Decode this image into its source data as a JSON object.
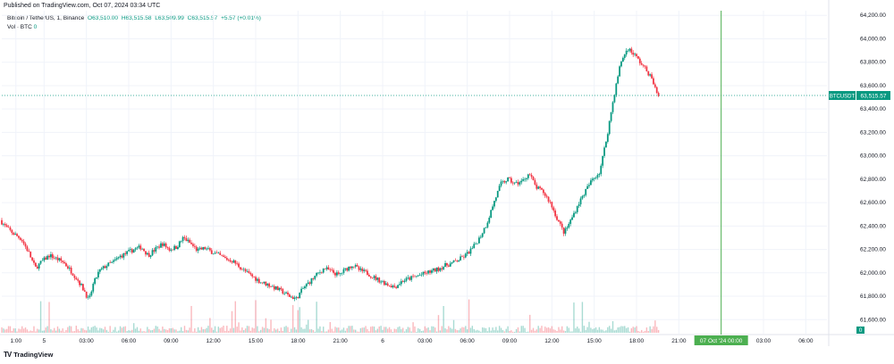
{
  "published": "Published on TradingView.com, Oct 07, 2024 03:34 UTC",
  "legend": {
    "symbol": "Bitcoin / TetherUS, 1, Binance",
    "open": "O63,510.00",
    "high": "H63,515.58",
    "low": "L63,509.99",
    "close": "C63,515.57",
    "change": "+5.57 (+0.01%)",
    "vol_label": "Vol · BTC",
    "vol_value": "0"
  },
  "footer": {
    "brand": "TradingView"
  },
  "colors": {
    "up": "#089981",
    "down": "#f23645",
    "marker": "#4caf50",
    "grid": "#f0f3fa"
  },
  "chart_data": {
    "type": "candlestick",
    "series": [
      {
        "name": "BTCUSDT",
        "price_label": "63,515.57"
      }
    ],
    "y_ticks": [
      61600,
      61800,
      62000,
      62200,
      62400,
      62600,
      62800,
      63000,
      63200,
      63400,
      63600,
      63800,
      64000,
      64200
    ],
    "y_tick_labels": [
      "61,600.00",
      "61,800.00",
      "62,000.00",
      "62,200.00",
      "62,400.00",
      "62,600.00",
      "62,800.00",
      "63,000.00",
      "63,200.00",
      "63,400.00",
      "63,600.00",
      "63,800.00",
      "64,000.00",
      "64,200.00"
    ],
    "ylim": [
      61480,
      64240
    ],
    "x_ticks": [
      "1:00",
      "5",
      "03:00",
      "06:00",
      "09:00",
      "12:00",
      "15:00",
      "18:00",
      "21:00",
      "6",
      "03:00",
      "06:00",
      "09:00",
      "12:00",
      "15:00",
      "18:00",
      "21:00",
      "03:00",
      "06:00"
    ],
    "x_tick_hours": [
      1,
      3,
      6,
      9,
      12,
      15,
      18,
      21,
      24,
      27,
      30,
      33,
      36,
      39,
      42,
      45,
      48,
      54,
      57
    ],
    "x_range_hours": [
      0,
      58.5
    ],
    "marker": {
      "label": "07 Oct '24   00:00",
      "hour": 51
    },
    "last_price": 63515.57,
    "vol_axis_label": "0",
    "price_path": [
      [
        0,
        62450
      ],
      [
        0.5,
        62380
      ],
      [
        1,
        62330
      ],
      [
        1.5,
        62290
      ],
      [
        2,
        62180
      ],
      [
        2.5,
        62040
      ],
      [
        3,
        62100
      ],
      [
        3.5,
        62150
      ],
      [
        4,
        62120
      ],
      [
        4.5,
        62090
      ],
      [
        5,
        62020
      ],
      [
        5.5,
        61940
      ],
      [
        6,
        61840
      ],
      [
        6.3,
        61760
      ],
      [
        6.6,
        61900
      ],
      [
        7,
        62010
      ],
      [
        7.5,
        62060
      ],
      [
        8,
        62090
      ],
      [
        8.5,
        62140
      ],
      [
        9,
        62170
      ],
      [
        9.5,
        62200
      ],
      [
        10,
        62220
      ],
      [
        10.5,
        62150
      ],
      [
        11,
        62200
      ],
      [
        11.5,
        62250
      ],
      [
        12,
        62200
      ],
      [
        12.5,
        62220
      ],
      [
        13,
        62300
      ],
      [
        13.5,
        62250
      ],
      [
        14,
        62190
      ],
      [
        14.5,
        62210
      ],
      [
        15,
        62180
      ],
      [
        15.5,
        62150
      ],
      [
        16,
        62120
      ],
      [
        16.5,
        62100
      ],
      [
        17,
        62050
      ],
      [
        17.5,
        62000
      ],
      [
        18,
        61960
      ],
      [
        18.5,
        61920
      ],
      [
        19,
        61900
      ],
      [
        19.5,
        61870
      ],
      [
        20,
        61840
      ],
      [
        20.5,
        61800
      ],
      [
        21,
        61780
      ],
      [
        21.5,
        61870
      ],
      [
        22,
        61930
      ],
      [
        22.5,
        61990
      ],
      [
        23,
        62040
      ],
      [
        23.5,
        62010
      ],
      [
        24,
        61980
      ],
      [
        24.5,
        62030
      ],
      [
        25,
        62070
      ],
      [
        25.5,
        62020
      ],
      [
        26,
        62000
      ],
      [
        26.5,
        61960
      ],
      [
        27,
        61930
      ],
      [
        27.5,
        61900
      ],
      [
        28,
        61880
      ],
      [
        28.5,
        61930
      ],
      [
        29,
        61950
      ],
      [
        29.5,
        61970
      ],
      [
        30,
        61990
      ],
      [
        30.5,
        62010
      ],
      [
        31,
        62030
      ],
      [
        31.5,
        62060
      ],
      [
        32,
        62080
      ],
      [
        32.5,
        62110
      ],
      [
        33,
        62150
      ],
      [
        33.5,
        62210
      ],
      [
        34,
        62300
      ],
      [
        34.5,
        62420
      ],
      [
        35,
        62600
      ],
      [
        35.5,
        62760
      ],
      [
        36,
        62800
      ],
      [
        36.5,
        62760
      ],
      [
        37,
        62780
      ],
      [
        37.5,
        62850
      ],
      [
        38,
        62730
      ],
      [
        38.5,
        62690
      ],
      [
        39,
        62600
      ],
      [
        39.5,
        62460
      ],
      [
        40,
        62340
      ],
      [
        40.5,
        62460
      ],
      [
        41,
        62590
      ],
      [
        41.5,
        62700
      ],
      [
        42,
        62800
      ],
      [
        42.5,
        62860
      ],
      [
        43,
        63150
      ],
      [
        43.5,
        63500
      ],
      [
        44,
        63800
      ],
      [
        44.5,
        63920
      ],
      [
        45,
        63860
      ],
      [
        45.5,
        63780
      ],
      [
        46,
        63700
      ],
      [
        46.3,
        63630
      ],
      [
        46.6,
        63515
      ]
    ]
  }
}
